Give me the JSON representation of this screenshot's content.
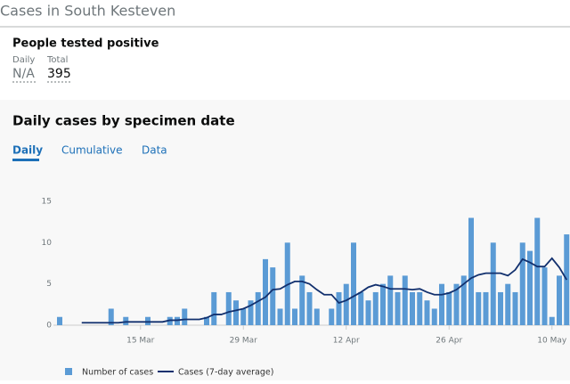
{
  "header": {
    "title": "Cases in South Kesteven"
  },
  "card": {
    "title": "People tested positive",
    "daily_label": "Daily",
    "daily_value": "N/A",
    "total_label": "Total",
    "total_value": "395"
  },
  "section": {
    "title": "Daily cases by specimen date",
    "tabs": [
      "Daily",
      "Cumulative",
      "Data"
    ]
  },
  "chart_data": {
    "type": "bar",
    "categories": [
      null,
      null,
      null,
      null,
      null,
      null,
      null,
      null,
      null,
      null,
      null,
      "15 Mar",
      null,
      null,
      null,
      null,
      null,
      null,
      null,
      null,
      null,
      null,
      null,
      null,
      null,
      "29 Mar",
      null,
      null,
      null,
      null,
      null,
      null,
      null,
      null,
      null,
      null,
      null,
      null,
      null,
      "12 Apr",
      null,
      null,
      null,
      null,
      null,
      null,
      null,
      null,
      null,
      null,
      null,
      null,
      null,
      "26 Apr",
      null,
      null,
      null,
      null,
      null,
      null,
      null,
      null,
      null,
      null,
      null,
      null,
      null,
      "10 May",
      null,
      null
    ],
    "series": [
      {
        "name": "Number of cases",
        "color": "#5b9bd5",
        "type": "bar",
        "values": [
          1,
          0,
          0,
          0,
          0,
          0,
          0,
          2,
          0,
          1,
          0,
          0,
          1,
          0,
          0,
          1,
          1,
          2,
          0,
          0,
          1,
          4,
          0,
          4,
          3,
          2,
          3,
          4,
          8,
          7,
          2,
          10,
          2,
          6,
          4,
          2,
          0,
          2,
          4,
          5,
          10,
          4,
          3,
          4,
          5,
          6,
          4,
          6,
          4,
          4,
          3,
          2,
          5,
          4,
          5,
          6,
          13,
          4,
          4,
          10,
          4,
          5,
          4,
          10,
          9,
          13,
          7,
          1,
          6,
          11
        ]
      },
      {
        "name": "Cases (7-day average)",
        "color": "#12306e",
        "type": "line",
        "values": [
          null,
          null,
          null,
          0.3,
          0.3,
          0.3,
          0.3,
          0.3,
          0.3,
          0.4,
          0.4,
          0.4,
          0.4,
          0.4,
          0.4,
          0.6,
          0.6,
          0.7,
          0.7,
          0.7,
          0.9,
          1.3,
          1.3,
          1.6,
          1.8,
          2.0,
          2.4,
          2.9,
          3.4,
          4.3,
          4.4,
          4.9,
          5.3,
          5.3,
          5.0,
          4.3,
          3.7,
          3.7,
          2.7,
          3.0,
          3.5,
          4.0,
          4.6,
          4.9,
          4.7,
          4.4,
          4.4,
          4.4,
          4.3,
          4.4,
          4.0,
          3.7,
          3.7,
          3.9,
          4.3,
          5.0,
          5.7,
          6.1,
          6.3,
          6.3,
          6.3,
          6.0,
          6.7,
          8.0,
          7.6,
          7.1,
          7.1,
          8.1,
          7.0,
          5.5
        ]
      }
    ],
    "ylim": [
      0,
      15
    ],
    "yticks": [
      0,
      5,
      10,
      15
    ],
    "grid": false
  }
}
